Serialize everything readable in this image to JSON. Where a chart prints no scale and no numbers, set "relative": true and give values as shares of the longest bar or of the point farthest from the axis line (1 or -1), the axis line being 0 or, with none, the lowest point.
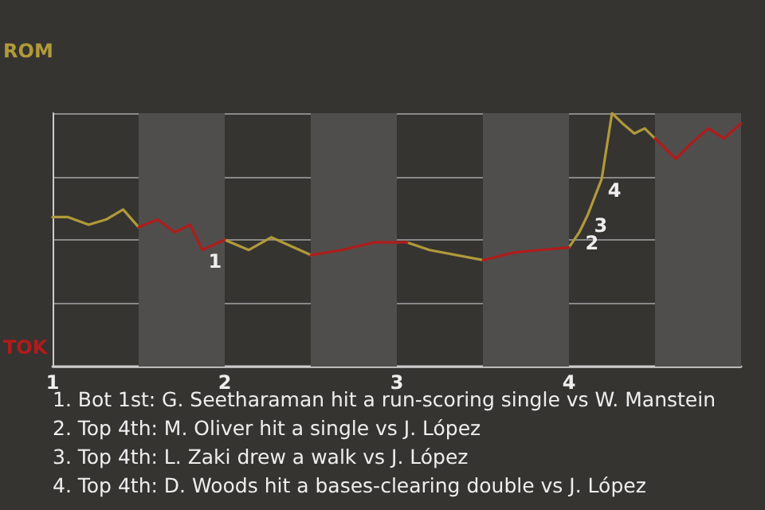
{
  "chart_data": {
    "type": "line",
    "relative": true,
    "x": [
      1.0,
      1.09,
      1.21,
      1.31,
      1.41,
      1.5,
      1.61,
      1.71,
      1.8,
      1.87,
      2.0,
      2.14,
      2.27,
      2.5,
      2.68,
      2.87,
      3.06,
      3.19,
      3.5,
      3.68,
      3.83,
      4.0,
      4.06,
      4.11,
      4.19,
      4.25,
      4.31,
      4.38,
      4.44,
      4.5,
      4.62,
      4.71,
      4.81,
      4.9,
      5.0
    ],
    "xlim": [
      1,
      5
    ],
    "xticks": [
      1,
      2,
      3,
      4
    ],
    "series": [
      {
        "color": "#b09a3a",
        "values": [
          0.59,
          0.59,
          0.56,
          0.58,
          0.62,
          0.55,
          null,
          null,
          null,
          null,
          0.5,
          0.46,
          0.51,
          0.44,
          null,
          null,
          0.49,
          0.46,
          0.42,
          null,
          null,
          0.47,
          0.53,
          0.6,
          0.74,
          1,
          0.96,
          0.92,
          0.94,
          0.9,
          null,
          null,
          null,
          null,
          null
        ]
      },
      {
        "color": "#b01c1c",
        "values": [
          null,
          null,
          null,
          null,
          null,
          0.55,
          0.58,
          0.53,
          0.56,
          0.46,
          0.5,
          null,
          null,
          0.44,
          0.46,
          0.49,
          0.49,
          null,
          0.42,
          0.45,
          0.46,
          0.47,
          null,
          null,
          null,
          null,
          null,
          null,
          null,
          0.9,
          0.82,
          0.88,
          0.94,
          0.9,
          0.96
        ]
      }
    ],
    "grid": "y",
    "marker": "none",
    "line_style": "solid",
    "bands": [
      {
        "axis": "x",
        "from": 1.5,
        "to": 2,
        "color": "#4f4e4c"
      },
      {
        "axis": "x",
        "from": 2.5,
        "to": 3,
        "color": "#4f4e4c"
      },
      {
        "axis": "x",
        "from": 3.5,
        "to": 4,
        "color": "#4f4e4c"
      },
      {
        "axis": "x",
        "from": 4.5,
        "to": 5,
        "color": "#4f4e4c"
      }
    ],
    "annotations": [
      {
        "text": "1",
        "x": 1.87,
        "y": 0.46
      },
      {
        "text": "2",
        "x": 4.06,
        "y": 0.53
      },
      {
        "text": "3",
        "x": 4.11,
        "y": 0.6
      },
      {
        "text": "4",
        "x": 4.19,
        "y": 0.74
      },
      "ROM",
      "TOK",
      "1. Bot 1st: G. Seetharaman hit a run-scoring single vs W. Manstein",
      "2. Top 4th: M. Oliver hit a single vs J. López",
      "3. Top 4th: L. Zaki drew a walk vs J. López",
      "4. Top 4th: D. Woods hit a bases-clearing double vs J. López"
    ]
  }
}
